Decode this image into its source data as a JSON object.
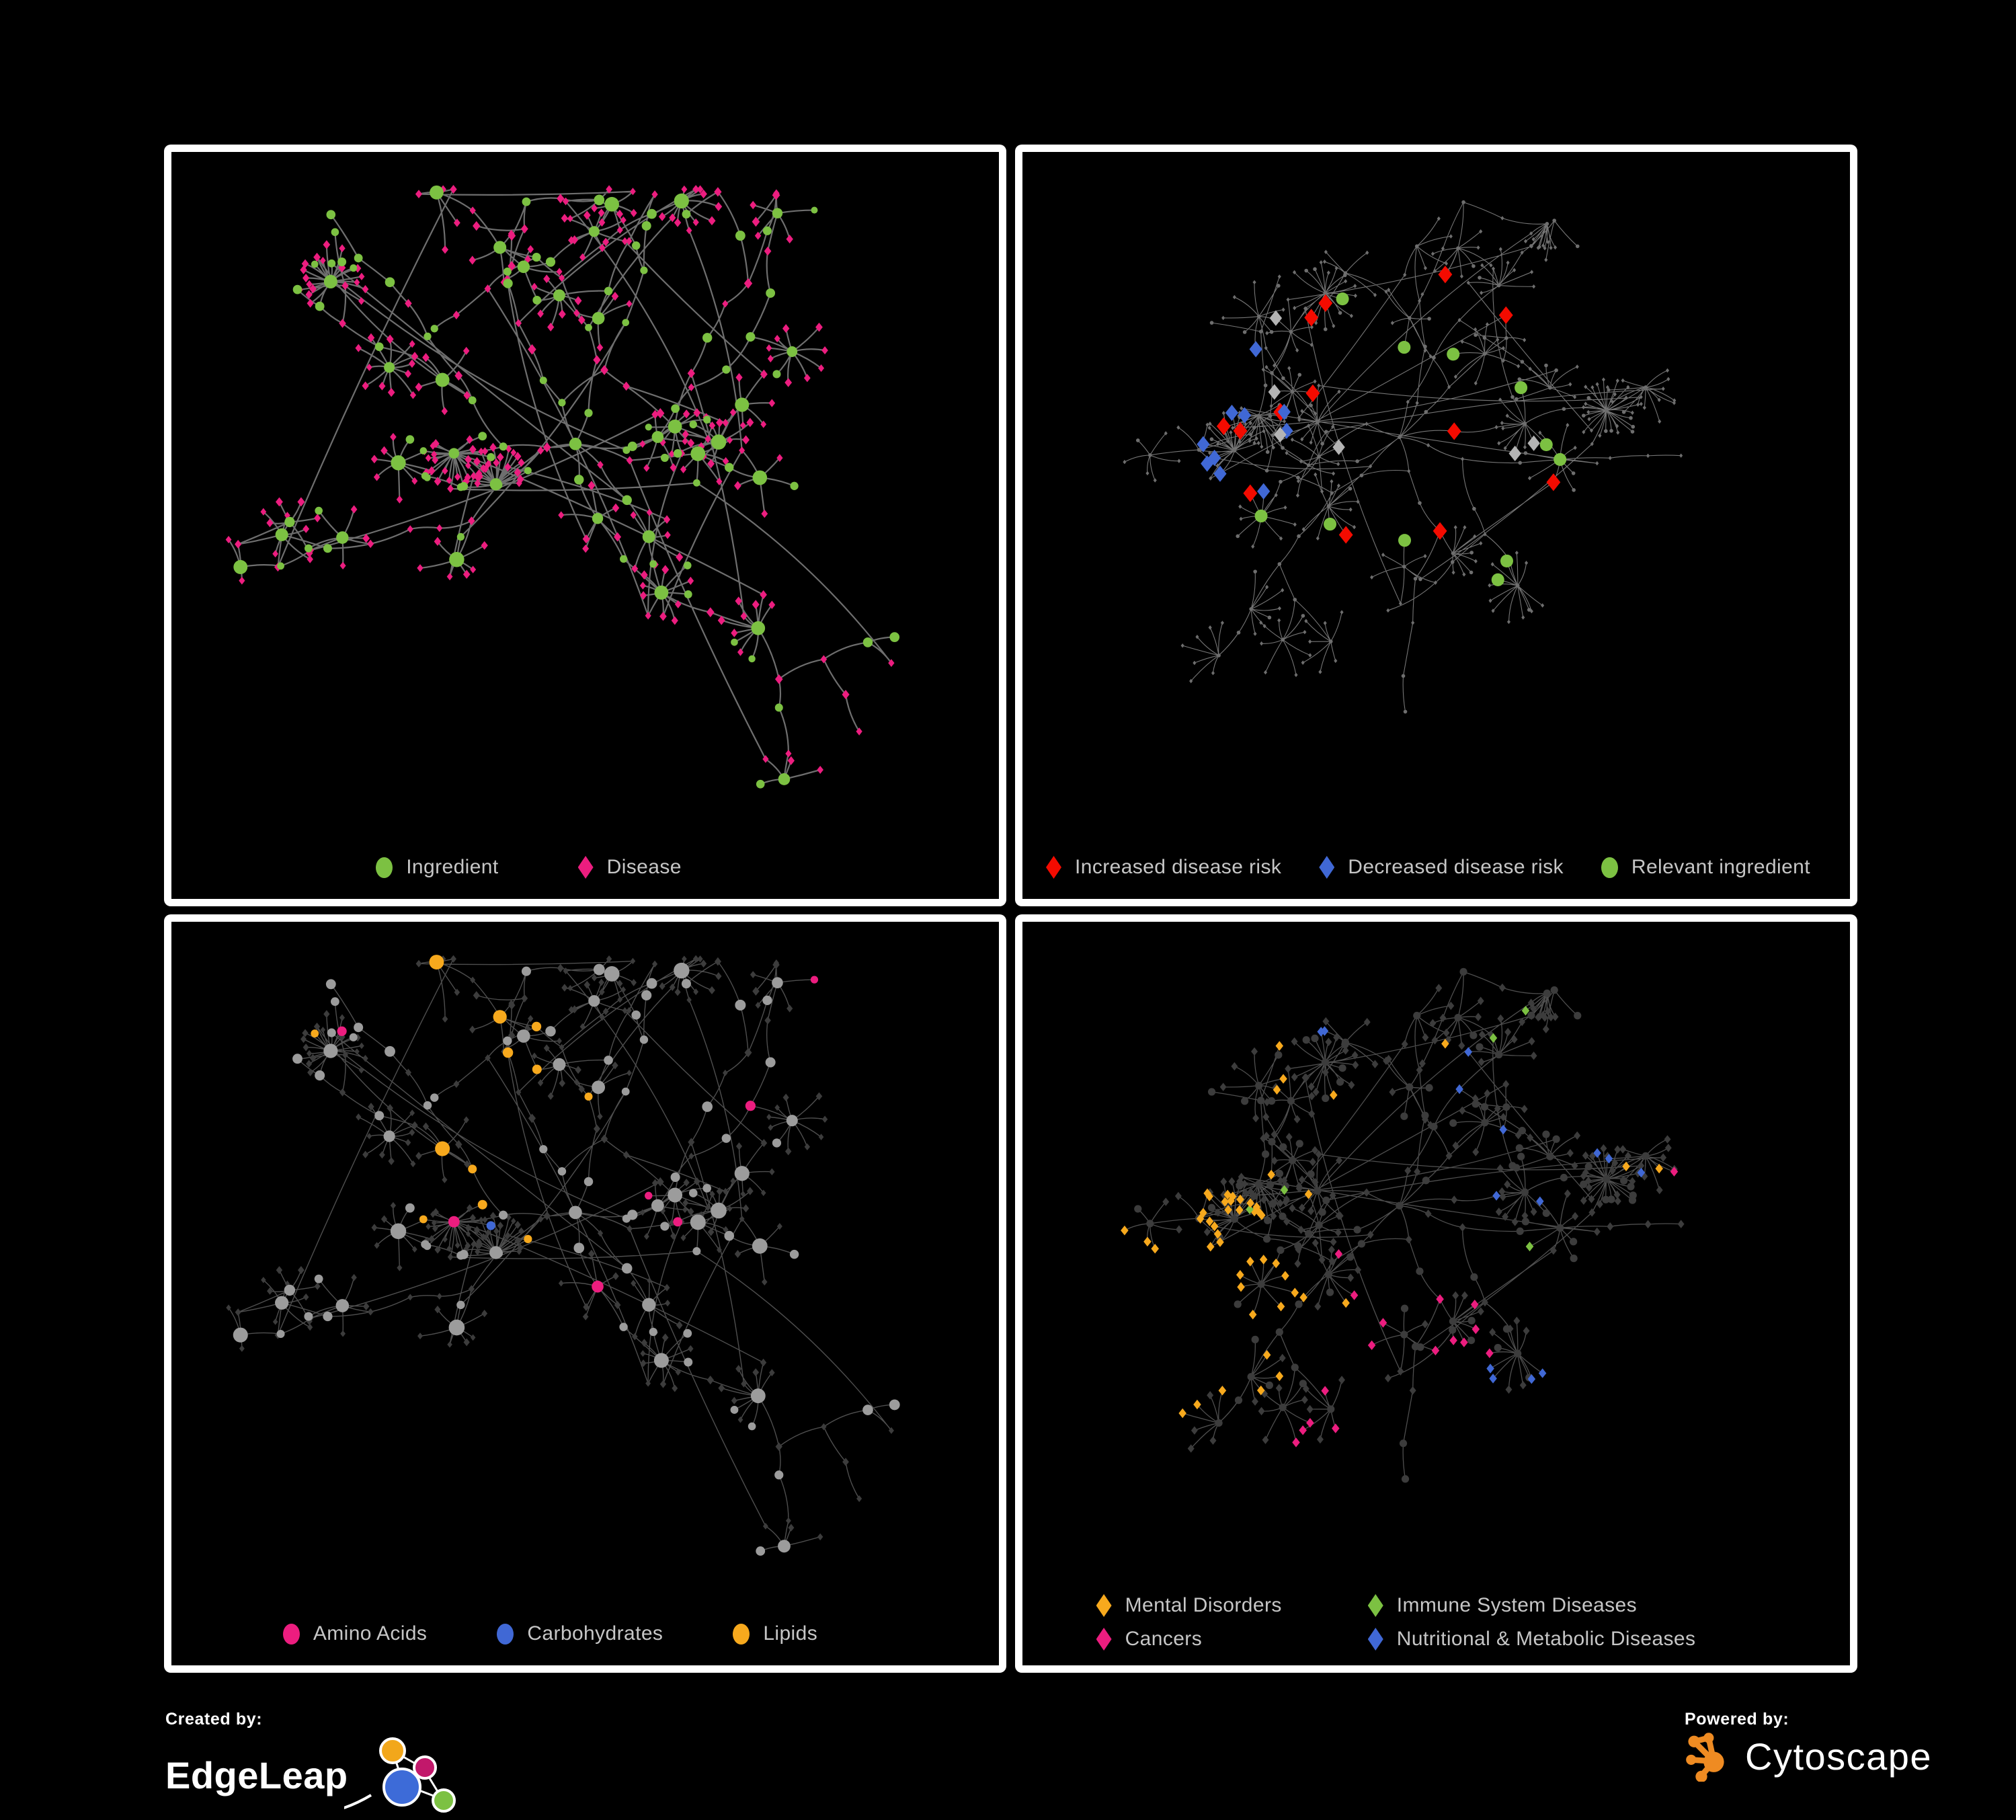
{
  "figure": {
    "background": "#000000",
    "panel_border_color": "#FFFFFF",
    "legend_text_color": "#C6C6C6",
    "palette": {
      "edge_gray": "#7E7E7E",
      "dim_node_gray": "#6E6E6E",
      "mid_gray_node": "#9C9C9C",
      "dark_node": "#3C3C3C",
      "light_gray_diamond": "#B4B4B4"
    },
    "panels": [
      {
        "id": "ingredient-disease-network",
        "legend": [
          {
            "label": "Ingredient",
            "shape": "circle",
            "color": "#7CC142"
          },
          {
            "label": "Disease",
            "shape": "diamond",
            "color": "#EC1D7F"
          }
        ]
      },
      {
        "id": "disease-risk-network",
        "legend": [
          {
            "label": "Increased disease risk",
            "shape": "diamond",
            "color": "#F40B00"
          },
          {
            "label": "Decreased disease risk",
            "shape": "diamond",
            "color": "#4068D5"
          },
          {
            "label": "Relevant ingredient",
            "shape": "circle",
            "color": "#7CC142"
          }
        ]
      },
      {
        "id": "macronutrient-network",
        "legend": [
          {
            "label": "Amino Acids",
            "shape": "circle",
            "color": "#EC1D7F"
          },
          {
            "label": "Carbohydrates",
            "shape": "circle",
            "color": "#4068D5"
          },
          {
            "label": "Lipids",
            "shape": "circle",
            "color": "#F7A91D"
          }
        ]
      },
      {
        "id": "disease-class-network",
        "legend": [
          {
            "label": "Mental Disorders",
            "shape": "diamond",
            "color": "#F7A91D"
          },
          {
            "label": "Immune System Diseases",
            "shape": "diamond",
            "color": "#7CC142"
          },
          {
            "label": "Cancers",
            "shape": "diamond",
            "color": "#EC1D7F"
          },
          {
            "label": "Nutritional & Metabolic Diseases",
            "shape": "diamond",
            "color": "#4068D5"
          }
        ]
      }
    ],
    "footer": {
      "created_by_label": "Created by:",
      "created_by_name": "EdgeLeap",
      "powered_by_label": "Powered by:",
      "powered_by_name": "Cytoscape",
      "edgeleap_logo_colors": {
        "orange": "#F2A71B",
        "magenta": "#C2186B",
        "blue": "#3D6BD8",
        "green": "#7CC142",
        "stroke": "#FFFFFF"
      },
      "cytoscape_logo_color": "#EF8B22"
    }
  }
}
